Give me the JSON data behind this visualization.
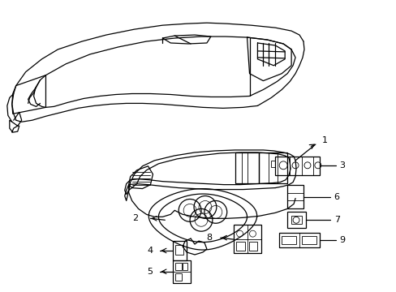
{
  "background_color": "#ffffff",
  "line_color": "#000000",
  "label_color": "#000000",
  "fig_width": 4.89,
  "fig_height": 3.6,
  "dpi": 100
}
